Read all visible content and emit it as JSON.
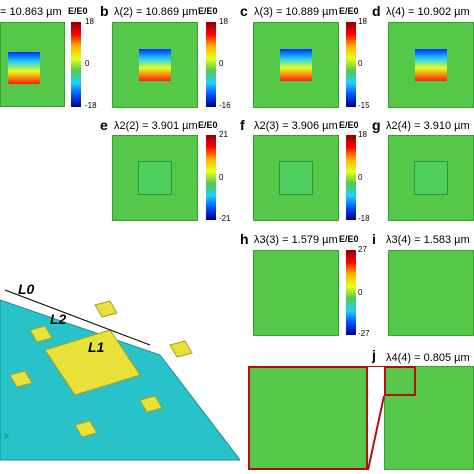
{
  "panels": {
    "a": {
      "title": "= 10.863 µm",
      "unit": "E/E0",
      "ticks": [
        "18",
        "0",
        "-18"
      ]
    },
    "b": {
      "letter": "b",
      "title": "λ(2) = 10.869 µm",
      "unit": "E/E0",
      "ticks": [
        "18",
        "0",
        "-16"
      ]
    },
    "c": {
      "letter": "c",
      "title": "λ(3) = 10.889 µm",
      "unit": "E/E0",
      "ticks": [
        "18",
        "0",
        "-15"
      ]
    },
    "d": {
      "letter": "d",
      "title": "λ(4) = 10.902 µm"
    },
    "e": {
      "letter": "e",
      "title": "λ2(2) = 3.901 µm",
      "unit": "E/E0",
      "ticks": [
        "21",
        "0",
        "-21"
      ]
    },
    "f": {
      "letter": "f",
      "title": "λ2(3) = 3.906 µm",
      "unit": "E/E0",
      "ticks": [
        "18",
        "0",
        "-18"
      ]
    },
    "g": {
      "letter": "g",
      "title": "λ2(4) = 3.910 µm"
    },
    "h": {
      "letter": "h",
      "title": "λ3(3) = 1.579 µm",
      "unit": "E/E0",
      "ticks": [
        "27",
        "0",
        "-27"
      ]
    },
    "i": {
      "letter": "i",
      "title": "λ3(4) = 1.583 µm"
    },
    "j": {
      "letter": "j",
      "title": "λ4(4) = 0.805 µm"
    }
  },
  "schematic": {
    "l0": "L0",
    "l1": "L1",
    "l2": "L2",
    "axis_x": "x"
  },
  "colors": {
    "background": "#55c84a",
    "hot": "#ff0000",
    "cold": "#0000cc",
    "substrate": "#27c3c9",
    "patch": "#e8e13a"
  }
}
